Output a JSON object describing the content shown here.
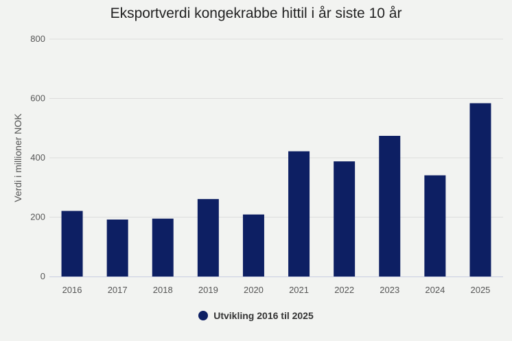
{
  "chart_data": {
    "type": "bar",
    "title": "Eksportverdi kongekrabbe hittil i år siste 10 år",
    "xlabel": "",
    "ylabel": "Verdi i millioner NOK",
    "categories": [
      "2016",
      "2017",
      "2018",
      "2019",
      "2020",
      "2021",
      "2022",
      "2023",
      "2024",
      "2025"
    ],
    "series": [
      {
        "name": "Utvikling 2016 til 2025",
        "values": [
          221,
          192,
          195,
          261,
          209,
          422,
          388,
          474,
          341,
          584
        ]
      }
    ],
    "ylim": [
      0,
      800
    ],
    "yticks": [
      0,
      200,
      400,
      600,
      800
    ],
    "grid": true,
    "legend": "bottom-center",
    "colors": {
      "bar": "#0d1f63",
      "grid": "#dcdcdc",
      "axis": "#c8cde0"
    }
  }
}
